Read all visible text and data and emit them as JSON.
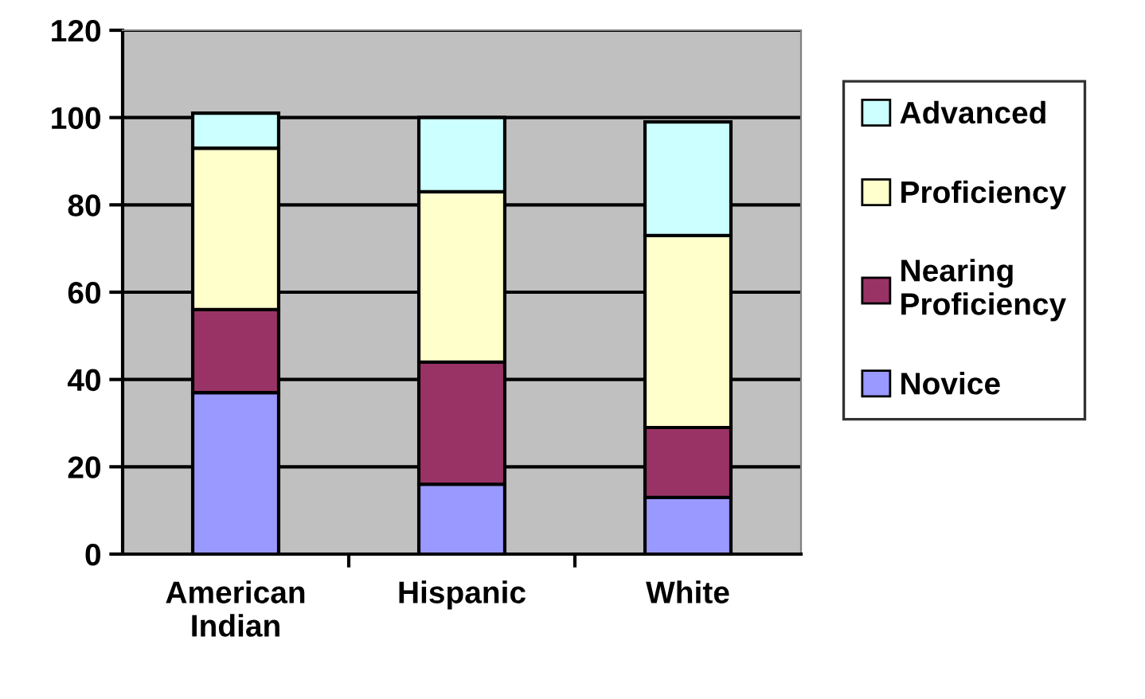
{
  "chart_data": {
    "type": "bar",
    "stacked": true,
    "categories": [
      "American\nIndian",
      "Hispanic",
      "White"
    ],
    "series": [
      {
        "name": "Novice",
        "color": "#9999ff",
        "values": [
          37,
          16,
          13
        ]
      },
      {
        "name": "Nearing\nProficiency",
        "color": "#993366",
        "values": [
          19,
          28,
          16
        ]
      },
      {
        "name": "Proficiency",
        "color": "#ffffcc",
        "values": [
          37,
          39,
          44
        ]
      },
      {
        "name": "Advanced",
        "color": "#ccffff",
        "values": [
          8,
          17,
          26
        ]
      }
    ],
    "ylim": [
      0,
      120
    ],
    "yticks": [
      0,
      20,
      40,
      60,
      80,
      100,
      120
    ],
    "grid": "y",
    "legend": "right"
  }
}
